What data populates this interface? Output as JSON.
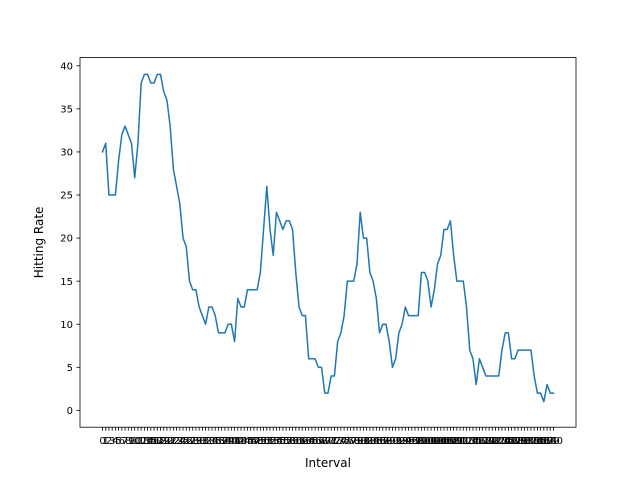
{
  "chart_data": {
    "type": "line",
    "title": "",
    "xlabel": "Interval",
    "ylabel": "Hitting Rate",
    "ylim": [
      -1.95,
      40.95
    ],
    "yticks": [
      0,
      5,
      10,
      15,
      20,
      25,
      30,
      35,
      40
    ],
    "grid": false,
    "x_tick_labels_overlap": true,
    "series": [
      {
        "color": "#1f77b4",
        "values": [
          30,
          31,
          25,
          25,
          25,
          29,
          32,
          33,
          32,
          31,
          27,
          31,
          38,
          39,
          39,
          38,
          38,
          39,
          39,
          37,
          36,
          33,
          28,
          26,
          24,
          20,
          19,
          15,
          14,
          14,
          12,
          11,
          10,
          12,
          12,
          11,
          9,
          9,
          9,
          10,
          10,
          8,
          13,
          12,
          12,
          14,
          14,
          14,
          14,
          16,
          21,
          26,
          21,
          18,
          23,
          22,
          21,
          22,
          22,
          21,
          16,
          12,
          11,
          11,
          6,
          6,
          6,
          5,
          5,
          2,
          2,
          4,
          4,
          8,
          9,
          11,
          15,
          15,
          15,
          17,
          23,
          20,
          20,
          16,
          15,
          13,
          9,
          10,
          10,
          8,
          5,
          6,
          9,
          10,
          12,
          11,
          11,
          11,
          11,
          16,
          16,
          15,
          12,
          14,
          17,
          18,
          21,
          21,
          22,
          18,
          15,
          15,
          15,
          12,
          7,
          6,
          3,
          6,
          5,
          4,
          4,
          4,
          4,
          4,
          7,
          9,
          9,
          6,
          6,
          7,
          7,
          7,
          7,
          7,
          4,
          2,
          2,
          1,
          3,
          2,
          2
        ]
      }
    ]
  }
}
